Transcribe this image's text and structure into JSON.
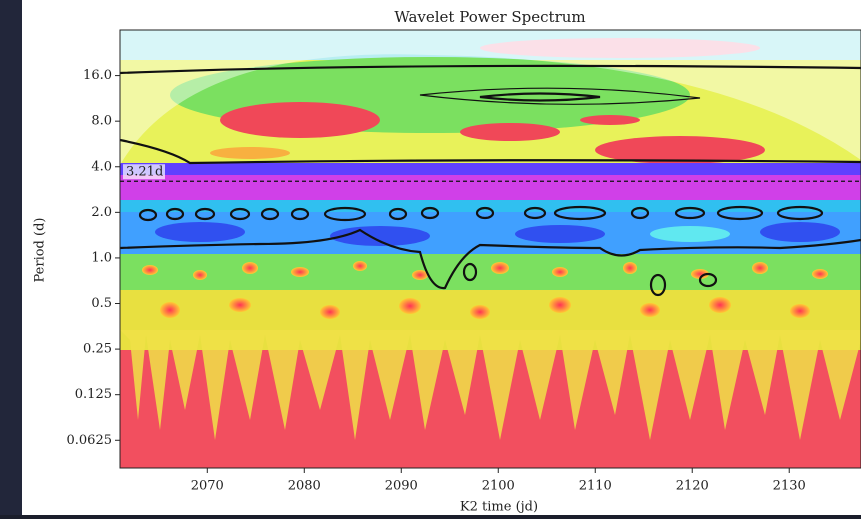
{
  "chart_data": {
    "type": "wavelet",
    "title": "Wavelet Power Spectrum",
    "x_label": "K2 time (jd)",
    "y_label": "Period (d)",
    "xlim": [
      2061,
      2137.4
    ],
    "xticks": [
      2070,
      2080,
      2090,
      2100,
      2110,
      2120,
      2130
    ],
    "ylim": [
      0.041,
      32
    ],
    "yscale": "log",
    "yticks": [
      {
        "value": 16,
        "label": "16.0"
      },
      {
        "value": 8,
        "label": "8.0"
      },
      {
        "value": 4,
        "label": "4.0"
      },
      {
        "value": 2,
        "label": "2.0"
      },
      {
        "value": 1,
        "label": "1.0"
      },
      0.5,
      0.25,
      0.125,
      0.0625
    ],
    "annotation": {
      "text": "3.21d",
      "value": 3.21
    }
  }
}
